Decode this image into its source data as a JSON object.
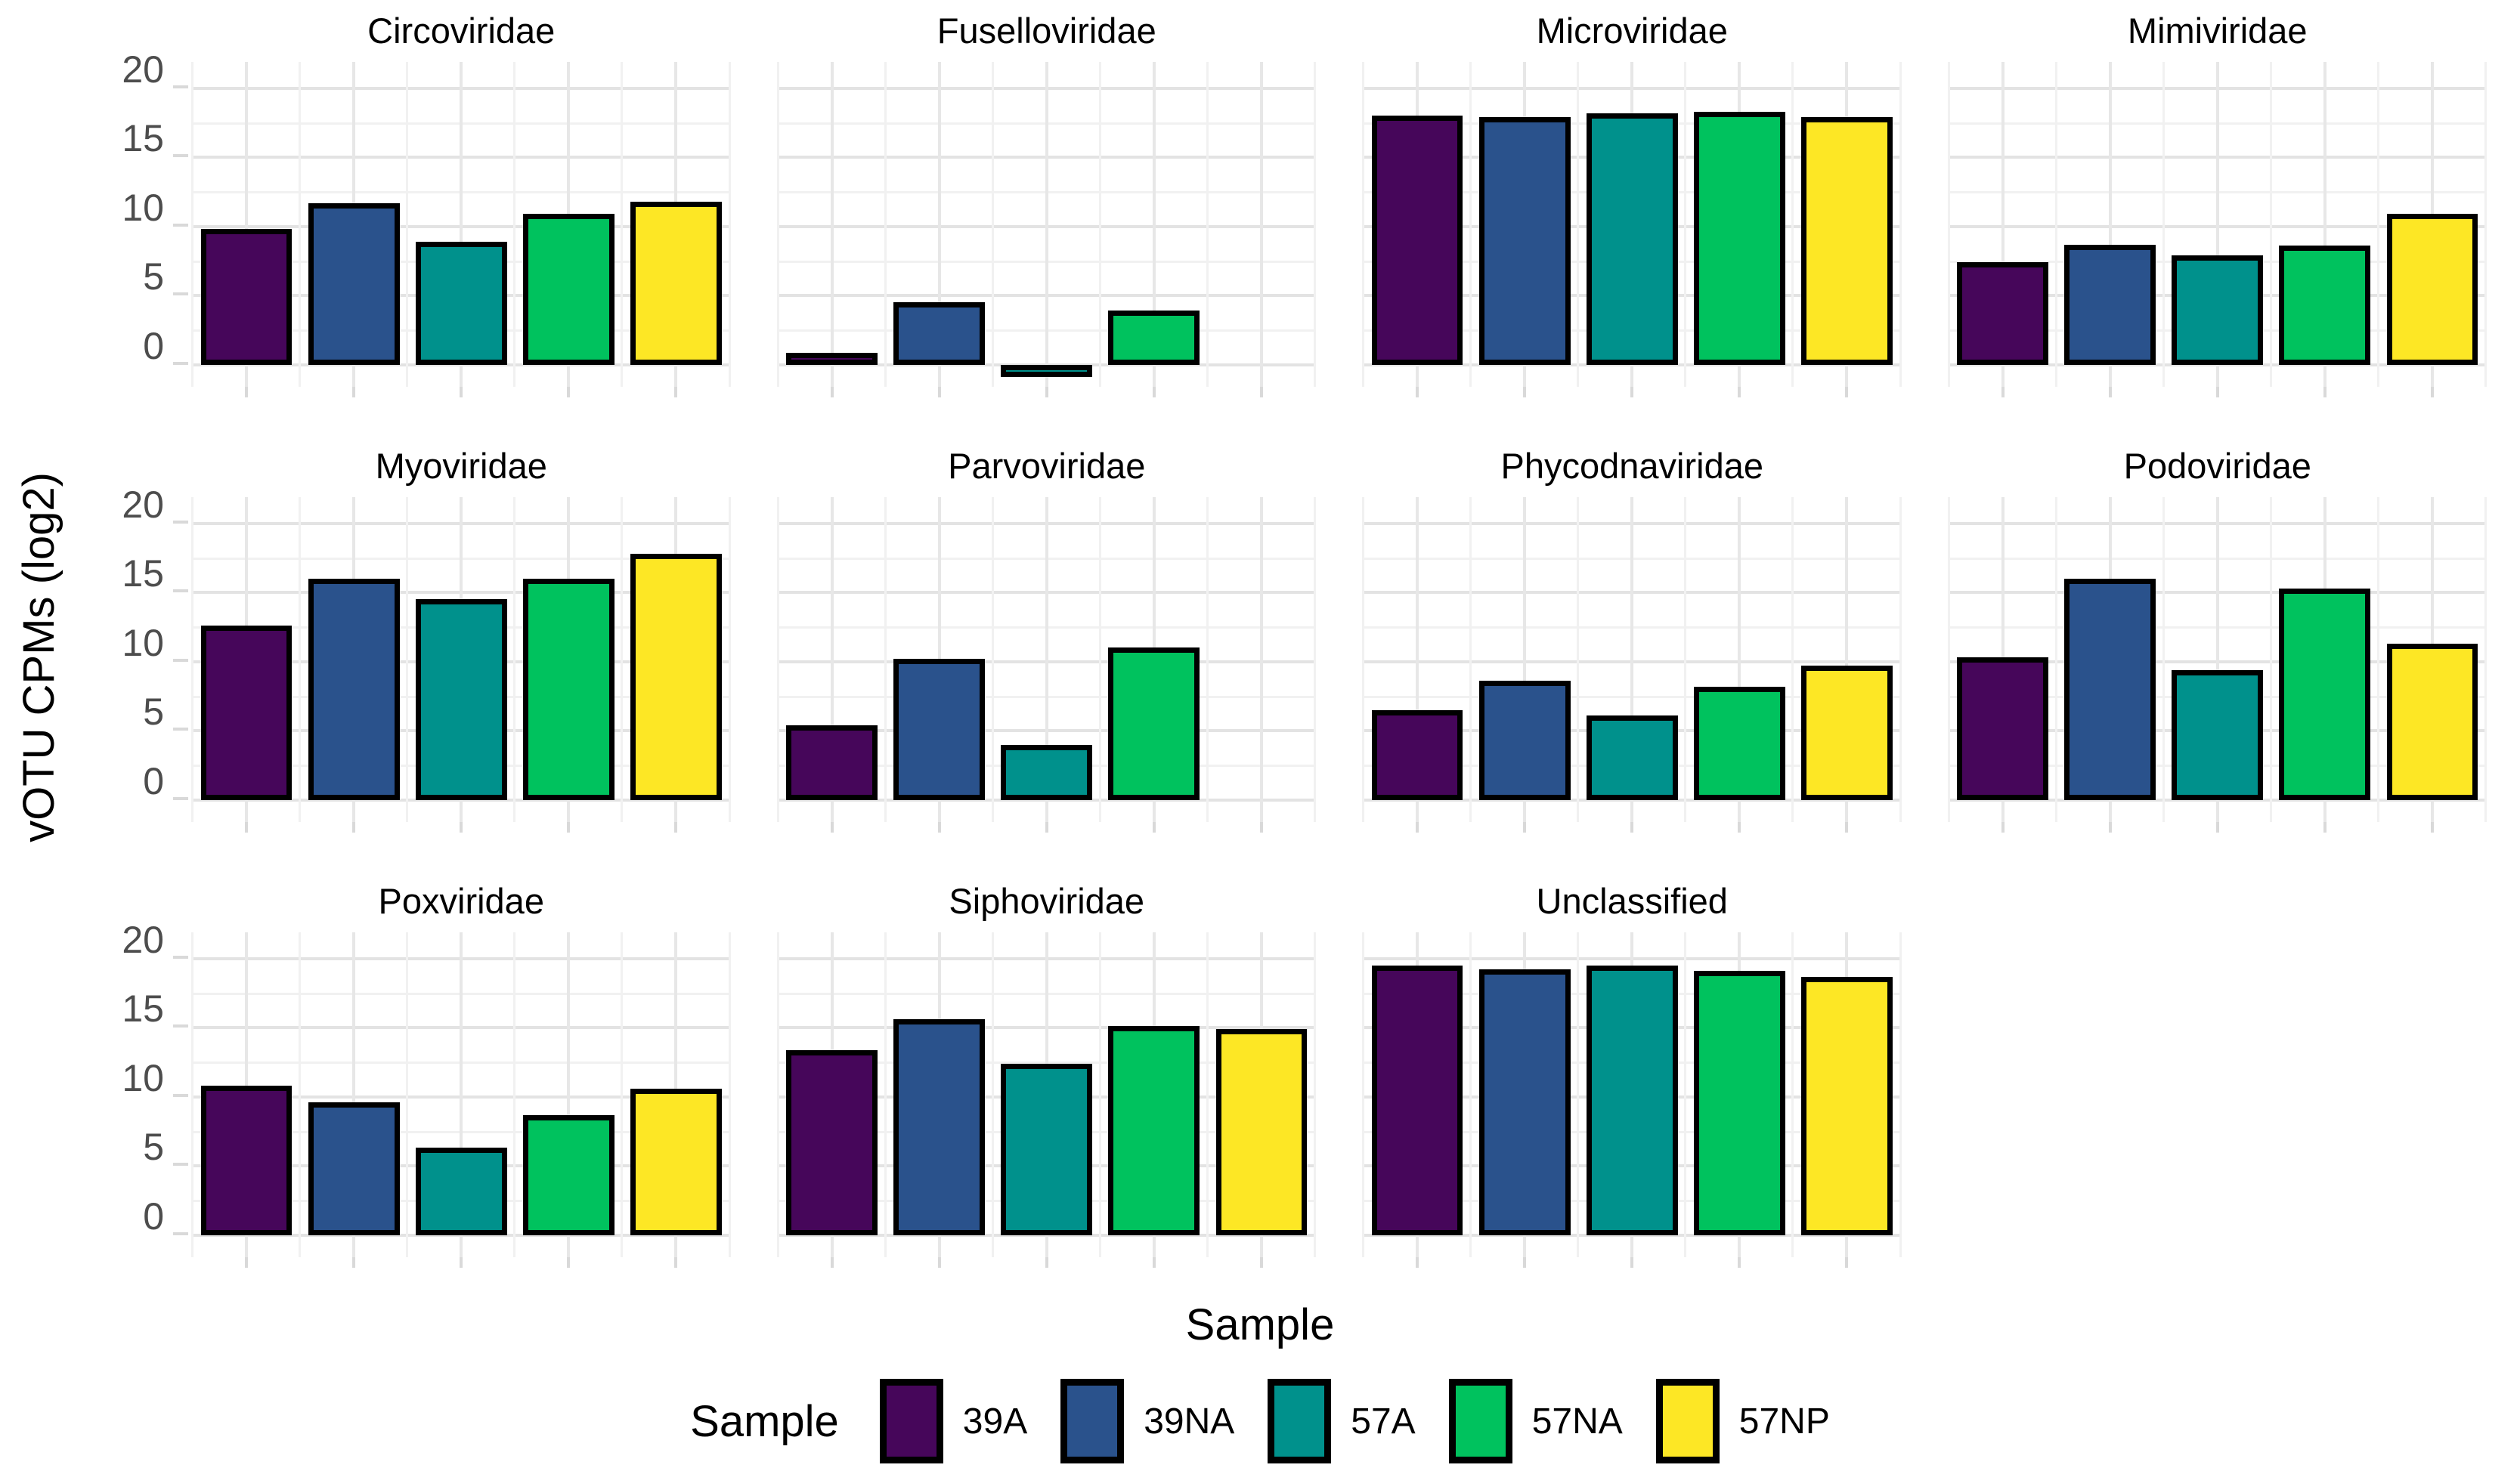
{
  "chart_data": {
    "type": "bar",
    "title": "",
    "ylabel": "vOTU CPMs (log2)",
    "xlabel": "Sample",
    "facet_layout": {
      "columns": 4,
      "rows": 3
    },
    "y_ticks": [
      20,
      15,
      10,
      5,
      0
    ],
    "ylim": [
      -1.6,
      21.9
    ],
    "grid": "major and minor horizontal + vertical, light gray, no panel border",
    "legend_position": "bottom",
    "samples": [
      "39A",
      "39NA",
      "57A",
      "57NA",
      "57NP"
    ],
    "colors": {
      "39A": "#46065A",
      "39NA": "#2A528C",
      "57A": "#00918C",
      "57NA": "#00C25E",
      "57NP": "#FDE725"
    },
    "bar_border_color": "#000000",
    "facets": [
      {
        "name": "Circoviridae",
        "values": [
          9.8,
          11.7,
          8.9,
          10.9,
          11.8
        ]
      },
      {
        "name": "Fuselloviridae",
        "values": [
          0.5,
          4.5,
          -0.4,
          3.9,
          null
        ]
      },
      {
        "name": "Microviridae",
        "values": [
          18.0,
          17.9,
          18.2,
          18.3,
          17.9
        ]
      },
      {
        "name": "Mimiviridae",
        "values": [
          7.4,
          8.7,
          7.9,
          8.6,
          10.9
        ]
      },
      {
        "name": "Myoviridae",
        "values": [
          12.6,
          16.0,
          14.5,
          16.0,
          17.8
        ]
      },
      {
        "name": "Parvoviridae",
        "values": [
          5.4,
          10.2,
          4.0,
          11.0,
          null
        ]
      },
      {
        "name": "Phycodnaviridae",
        "values": [
          6.5,
          8.6,
          6.1,
          8.2,
          9.7
        ]
      },
      {
        "name": "Podoviridae",
        "values": [
          10.3,
          16.0,
          9.4,
          15.3,
          11.3
        ]
      },
      {
        "name": "Poxviridae",
        "values": [
          10.8,
          9.6,
          6.3,
          8.7,
          10.6
        ]
      },
      {
        "name": "Siphoviridae",
        "values": [
          13.4,
          15.6,
          12.4,
          15.1,
          14.9
        ]
      },
      {
        "name": "Unclassified",
        "values": [
          19.5,
          19.2,
          19.5,
          19.1,
          18.7
        ]
      }
    ]
  },
  "axis": {
    "tick_labels": [
      "20",
      "15",
      "10",
      "5",
      "0"
    ]
  },
  "legend": {
    "title": "Sample",
    "items": [
      {
        "label": "39A",
        "color": "#46065A"
      },
      {
        "label": "39NA",
        "color": "#2A528C"
      },
      {
        "label": "57A",
        "color": "#00918C"
      },
      {
        "label": "57NA",
        "color": "#00C25E"
      },
      {
        "label": "57NP",
        "color": "#FDE725"
      }
    ]
  },
  "style": {
    "grid_major": "#E3E3E3",
    "grid_minor": "#F1F1F1",
    "tick_color": "#D9D9D9",
    "axis_text_color": "#4D4D4D"
  }
}
